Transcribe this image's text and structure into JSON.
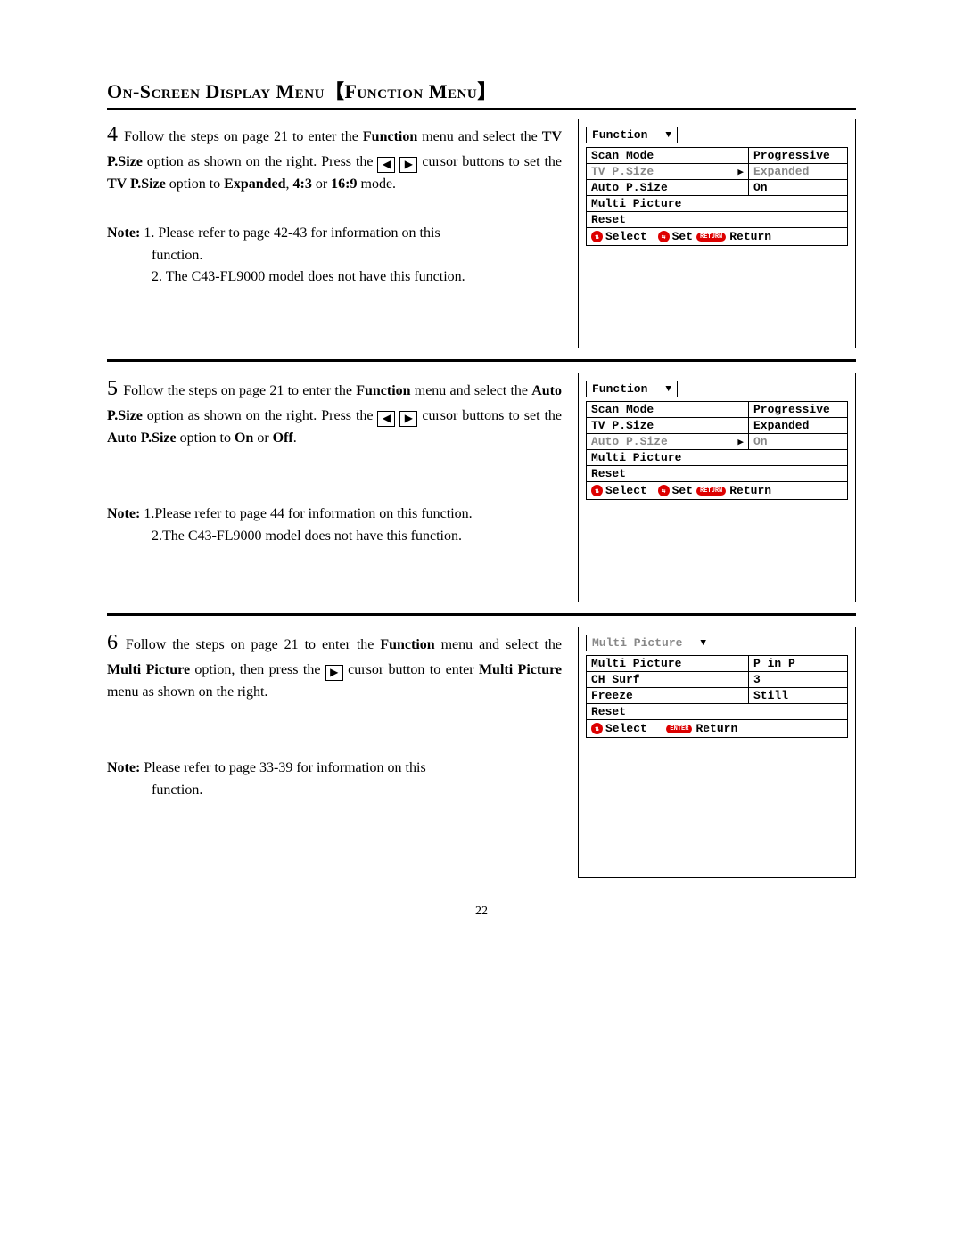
{
  "page_number": "22",
  "title_main": "On-Screen Display Menu",
  "title_bracket": "【Function Menu】",
  "steps": {
    "s4": {
      "num": "4",
      "text_a": " Follow the steps on page 21 to enter the ",
      "bold_a": "Function",
      "text_b": " menu and select the ",
      "bold_b": "TV P.Size",
      "text_c": " option as shown on the right. Press the ",
      "text_d": " cursor buttons to set the ",
      "bold_d": "TV P.Size",
      "text_e": " option to ",
      "bold_e": "Expanded",
      "text_f": ", ",
      "bold_f": "4:3",
      "text_g": " or ",
      "bold_g": "16:9",
      "text_h": " mode.",
      "note_label": "Note:",
      "note1": " 1. Please refer to page 42-43 for information on this",
      "note1b": "function.",
      "note2": "2. The C43-FL9000 model does not have this function."
    },
    "s5": {
      "num": "5",
      "text_a": " Follow the steps on page 21 to enter the ",
      "bold_a": "Function",
      "text_b": " menu and select the ",
      "bold_b": "Auto P.Size",
      "text_c": " option as shown on the right. Press the ",
      "text_d": " cursor buttons to set the ",
      "bold_d": "Auto P.Size",
      "text_e": " option to ",
      "bold_e": "On",
      "text_f": " or ",
      "bold_f": "Off",
      "text_g": ".",
      "note_label": "Note:",
      "note1": " 1.Please refer to page 44 for information on this function.",
      "note2": "2.The C43-FL9000 model does not have this function."
    },
    "s6": {
      "num": "6",
      "text_a": " Follow the steps on page 21 to enter the ",
      "bold_a": "Function",
      "text_b": " menu and select the ",
      "bold_b": "Multi Picture",
      "text_c": " option, then press the ",
      "text_d": " cursor button to enter ",
      "bold_d": "Multi Picture",
      "text_e": " menu as shown on the right.",
      "note_label": "Note:",
      "note1": " Please refer to page 33-39 for information on this",
      "note1b": "function."
    }
  },
  "osd": {
    "m1": {
      "header": "Function",
      "rows": [
        {
          "l": "Scan Mode",
          "r": "Progressive",
          "sel": false
        },
        {
          "l": "TV P.Size",
          "r": "Expanded",
          "sel": true
        },
        {
          "l": "Auto P.Size",
          "r": "On",
          "sel": false
        },
        {
          "l": "Multi Picture",
          "r": "",
          "sel": false,
          "novalue": true
        },
        {
          "l": "Reset",
          "r": "",
          "sel": false,
          "novalue": true
        }
      ],
      "footer": {
        "select": "Select",
        "set": "Set",
        "return_btn": "RETURN",
        "return_txt": "Return"
      }
    },
    "m2": {
      "header": "Function",
      "rows": [
        {
          "l": "Scan Mode",
          "r": "Progressive",
          "sel": false
        },
        {
          "l": "TV P.Size",
          "r": "Expanded",
          "sel": false
        },
        {
          "l": "Auto P.Size",
          "r": "On",
          "sel": true
        },
        {
          "l": "Multi Picture",
          "r": "",
          "sel": false,
          "novalue": true
        },
        {
          "l": "Reset",
          "r": "",
          "sel": false,
          "novalue": true
        }
      ],
      "footer": {
        "select": "Select",
        "set": "Set",
        "return_btn": "RETURN",
        "return_txt": "Return"
      }
    },
    "m3": {
      "header": "Multi Picture",
      "header_grey": true,
      "rows": [
        {
          "l": "Multi Picture",
          "r": "P in P",
          "sel": false
        },
        {
          "l": "CH Surf",
          "r": "3",
          "sel": false
        },
        {
          "l": "Freeze",
          "r": "Still",
          "sel": false
        },
        {
          "l": "Reset",
          "r": "",
          "sel": false,
          "novalue": true
        }
      ],
      "footer": {
        "select": "Select",
        "return_btn": "ENTER",
        "return_txt": "Return"
      }
    }
  },
  "glyphs": {
    "left": "◀",
    "right": "▶",
    "down": "▼",
    "updown": "⇅",
    "leftright": "⇆"
  }
}
